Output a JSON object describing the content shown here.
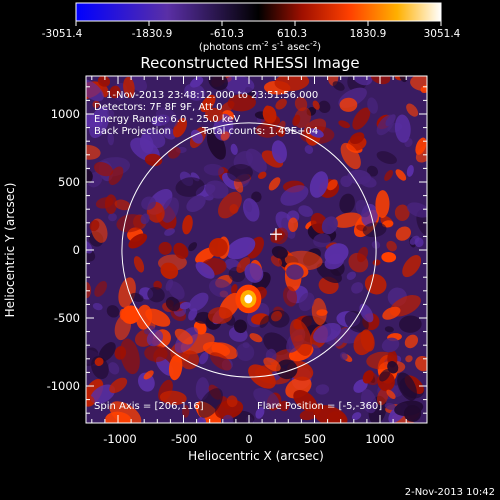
{
  "colorbar": {
    "tick_labels": [
      "-3051.4",
      "-1830.9",
      "-610.3",
      "610.3",
      "1830.9",
      "3051.4"
    ],
    "units_label_main": "(photons cm",
    "units_sup1": "-2",
    "units_mid1": " s",
    "units_sup2": "-1",
    "units_mid2": " asec",
    "units_sup3": "-2",
    "units_close": ")",
    "range": [
      -3051.4,
      3051.4
    ],
    "colors": [
      "#0000ff",
      "#5a2fa6",
      "#000000",
      "#a01000",
      "#ff4000",
      "#ffb000",
      "#ffffff"
    ]
  },
  "plot": {
    "title": "Reconstructed RHESSI Image",
    "xlabel": "Heliocentric X (arcsec)",
    "ylabel": "Heliocentric Y (arcsec)",
    "x_ticks": [
      "-1000",
      "-500",
      "0",
      "500",
      "1000"
    ],
    "y_ticks": [
      "1000",
      "500",
      "0",
      "-500",
      "-1000"
    ],
    "annotations": {
      "time_range": "1-Nov-2013 23:48:12.000 to 23:51:56.000",
      "detectors": "Detectors: 7F 8F 9F, Att 0",
      "energy_range": "Energy Range: 6.0 - 25.0 keV",
      "method": "Back Projection",
      "total_counts": "Total counts: 1.49E+04",
      "spin_axis": "Spin Axis = [206,116]",
      "flare_position": "Flare Position = [-5,-360]"
    }
  },
  "footer": {
    "timestamp": "2-Nov-2013 10:42"
  },
  "chart_data": {
    "type": "heatmap",
    "title": "Reconstructed RHESSI Image",
    "xlabel": "Heliocentric X (arcsec)",
    "ylabel": "Heliocentric Y (arcsec)",
    "xlim": [
      -1300,
      1300
    ],
    "ylim": [
      -1300,
      1250
    ],
    "x_ticks": [
      -1000,
      -500,
      0,
      500,
      1000
    ],
    "y_ticks": [
      -1000,
      -500,
      0,
      500,
      1000
    ],
    "colorbar_range": [
      -3051.4,
      3051.4
    ],
    "colorbar_ticks": [
      -3051.4,
      -1830.9,
      -610.3,
      610.3,
      1830.9,
      3051.4
    ],
    "solar_limb_radius_arcsec": 970,
    "solar_limb_center": [
      0,
      0
    ],
    "cross_marker": [
      206,
      116
    ],
    "bright_source": [
      -5,
      -360
    ],
    "grid": false
  }
}
